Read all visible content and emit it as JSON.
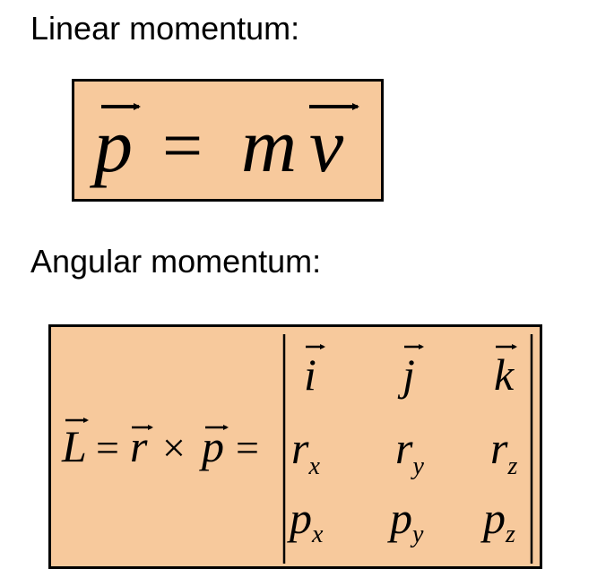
{
  "linear": {
    "heading": "Linear momentum:",
    "eq": {
      "lhs": "p",
      "equals": "=",
      "m": "m",
      "v": "v"
    }
  },
  "angular": {
    "heading": "Angular momentum:",
    "eq": {
      "L": "L",
      "eq1": "=",
      "r": "r",
      "times": "×",
      "p": "p",
      "eq2": "=",
      "matrix": [
        [
          {
            "base": "i",
            "sub": ""
          },
          {
            "base": "j",
            "sub": ""
          },
          {
            "base": "k",
            "sub": ""
          }
        ],
        [
          {
            "base": "r",
            "sub": "x"
          },
          {
            "base": "r",
            "sub": "y"
          },
          {
            "base": "r",
            "sub": "z"
          }
        ],
        [
          {
            "base": "p",
            "sub": "x"
          },
          {
            "base": "p",
            "sub": "y"
          },
          {
            "base": "p",
            "sub": "z"
          }
        ]
      ]
    }
  },
  "colors": {
    "box_fill": "#f7c99c",
    "border": "#000000"
  }
}
